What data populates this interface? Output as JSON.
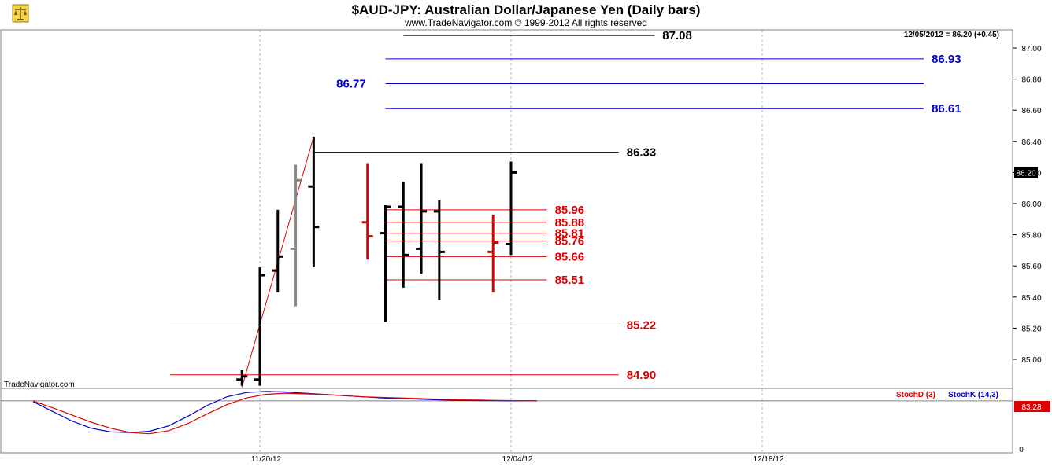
{
  "title": "$AUD-JPY:  Australian Dollar/Japanese Yen  (Daily bars)",
  "copyright": "www.TradeNavigator.com © 1999-2012 All rights reserved",
  "watermark": "TradeNavigator.com",
  "last_readout": "12/05/2012 = 86.20 (+0.45)",
  "last_price_tag": "86.20",
  "logo_icon": "scales-logo-icon",
  "colors": {
    "black": "#000000",
    "blue": "#0000cc",
    "red": "#dd0000",
    "gray": "#888888",
    "gridline": "#b5b5b5"
  },
  "chart_data": {
    "type": "ohlc",
    "ylim": [
      84.8,
      87.1
    ],
    "y_ticks": [
      "85.00",
      "85.20",
      "85.40",
      "85.60",
      "85.80",
      "86.00",
      "86.20",
      "86.40",
      "86.60",
      "86.80",
      "87.00"
    ],
    "x_ticks": [
      "11/20/12",
      "12/04/12",
      "12/18/12"
    ],
    "bars": [
      {
        "date": "11/19/12",
        "open": 84.87,
        "high": 84.93,
        "low": 84.83,
        "close": 84.89,
        "color": "black"
      },
      {
        "date": "11/20/12",
        "open": 84.87,
        "high": 85.59,
        "low": 84.83,
        "close": 85.54,
        "color": "black"
      },
      {
        "date": "11/21/12",
        "open": 85.57,
        "high": 85.96,
        "low": 85.43,
        "close": 85.66,
        "color": "black"
      },
      {
        "date": "11/22/12",
        "open": 85.71,
        "high": 86.25,
        "low": 85.34,
        "close": 86.15,
        "color": "gray"
      },
      {
        "date": "11/23/12",
        "open": 86.11,
        "high": 86.43,
        "low": 85.59,
        "close": 85.85,
        "color": "black"
      },
      {
        "date": "11/26/12",
        "open": 85.88,
        "high": 86.26,
        "low": 85.64,
        "close": 85.79,
        "color": "red"
      },
      {
        "date": "11/27/12",
        "open": 85.81,
        "high": 85.99,
        "low": 85.24,
        "close": 85.98,
        "color": "black"
      },
      {
        "date": "11/28/12",
        "open": 85.98,
        "high": 86.14,
        "low": 85.46,
        "close": 85.67,
        "color": "black"
      },
      {
        "date": "11/29/12",
        "open": 85.71,
        "high": 86.26,
        "low": 85.55,
        "close": 85.95,
        "color": "black"
      },
      {
        "date": "11/30/12",
        "open": 85.95,
        "high": 86.02,
        "low": 85.38,
        "close": 85.69,
        "color": "black"
      },
      {
        "date": "12/03/12",
        "open": 85.69,
        "high": 85.93,
        "low": 85.43,
        "close": 85.75,
        "color": "red"
      },
      {
        "date": "12/04/12",
        "open": 85.74,
        "high": 86.27,
        "low": 85.67,
        "close": 86.2,
        "color": "black"
      }
    ],
    "levels": [
      {
        "value": 87.08,
        "label": "87.08",
        "color": "black",
        "from": "11/28/12",
        "to": "12/12/12",
        "label_at": "12/12/12"
      },
      {
        "value": 86.93,
        "label": "86.93",
        "color": "blue",
        "from": "11/27/12",
        "to": "12/27/12",
        "label_at": "12/27/12"
      },
      {
        "value": 86.77,
        "label": "86.77",
        "color": "blue",
        "from": "11/27/12",
        "to": "12/27/12",
        "label_at": "11/26/12"
      },
      {
        "value": 86.61,
        "label": "86.61",
        "color": "blue",
        "from": "11/27/12",
        "to": "12/27/12",
        "label_at": "12/27/12"
      },
      {
        "value": 86.33,
        "label": "86.33",
        "color": "black",
        "from": "11/23/12",
        "to": "12/10/12",
        "label_at": "12/10/12"
      },
      {
        "value": 85.96,
        "label": "85.96",
        "color": "red",
        "from": "11/27/12",
        "to": "12/06/12",
        "label_at": "12/06/12"
      },
      {
        "value": 85.88,
        "label": "85.88",
        "color": "red",
        "from": "11/27/12",
        "to": "12/06/12",
        "label_at": "12/06/12"
      },
      {
        "value": 85.81,
        "label": "85.81",
        "color": "red",
        "from": "11/27/12",
        "to": "12/06/12",
        "label_at": "12/06/12"
      },
      {
        "value": 85.76,
        "label": "85.76",
        "color": "red",
        "from": "11/27/12",
        "to": "12/06/12",
        "label_at": "12/06/12"
      },
      {
        "value": 85.66,
        "label": "85.66",
        "color": "red",
        "from": "11/27/12",
        "to": "12/06/12",
        "label_at": "12/06/12"
      },
      {
        "value": 85.51,
        "label": "85.51",
        "color": "red",
        "from": "11/27/12",
        "to": "12/06/12",
        "label_at": "12/06/12"
      },
      {
        "value": 85.22,
        "label": "85.22",
        "color": "red",
        "from": "11/15/12",
        "to": "12/10/12",
        "label_at": "12/10/12"
      },
      {
        "value": 84.9,
        "label": "84.90",
        "color": "red",
        "from": "11/15/12",
        "to": "12/10/12",
        "label_at": "12/10/12"
      }
    ],
    "trendline": {
      "from": {
        "date": "11/19/12",
        "value": 84.82
      },
      "to": {
        "date": "11/23/12",
        "value": 86.43
      },
      "color": "red"
    },
    "stochastic": {
      "ylim": [
        0,
        100
      ],
      "tick_label": "0",
      "last_value_tag": "83.28",
      "legend": [
        {
          "name": "StochD (3)",
          "color": "red"
        },
        {
          "name": "StochK (14,3)",
          "color": "blue"
        }
      ],
      "stochD": [
        83,
        72,
        60,
        48,
        38,
        31,
        29,
        34,
        46,
        62,
        77,
        88,
        94,
        96,
        95,
        94,
        92,
        90,
        89,
        88,
        87,
        86,
        85,
        84.5,
        84,
        83.5,
        83.3
      ],
      "stochK": [
        82,
        66,
        50,
        38,
        32,
        31,
        33,
        42,
        58,
        76,
        90,
        97,
        99,
        98,
        96,
        94,
        92,
        90,
        88,
        87,
        86,
        85,
        84,
        83.8,
        83.5,
        83.3,
        83.3
      ]
    }
  }
}
